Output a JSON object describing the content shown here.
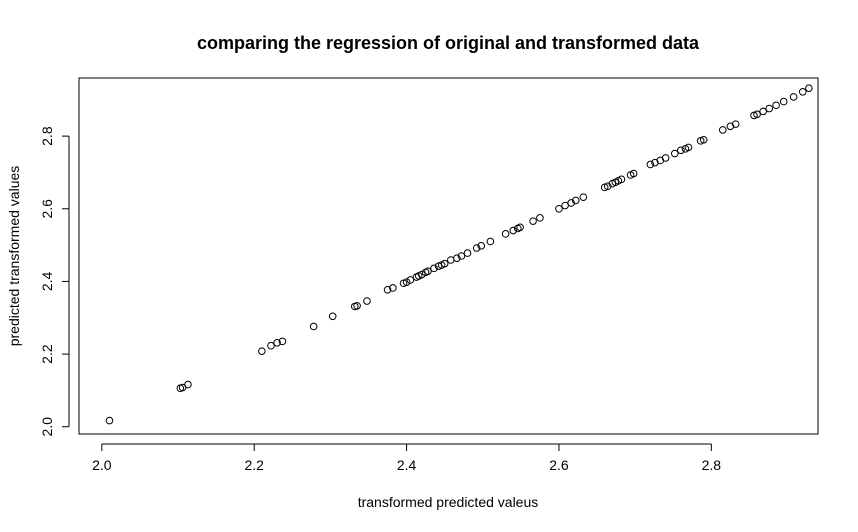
{
  "chart_data": {
    "type": "scatter",
    "title": "comparing the regression of original and transformed data",
    "xlabel": "transformed predicted valeus",
    "ylabel": "predicted transformed values",
    "xlim": [
      1.97,
      2.94
    ],
    "ylim": [
      1.98,
      2.96
    ],
    "xticks": [
      2.0,
      2.2,
      2.4,
      2.6,
      2.8
    ],
    "yticks": [
      2.0,
      2.2,
      2.4,
      2.6,
      2.8
    ],
    "xtick_labels": [
      "2.0",
      "2.2",
      "2.4",
      "2.6",
      "2.8"
    ],
    "ytick_labels": [
      "2.0",
      "2.2",
      "2.4",
      "2.6",
      "2.8"
    ],
    "marker": "open-circle",
    "marker_color": "#000000",
    "grid": false,
    "legend": "none",
    "points": [
      [
        2.01,
        2.017
      ],
      [
        2.103,
        2.106
      ],
      [
        2.106,
        2.108
      ],
      [
        2.113,
        2.116
      ],
      [
        2.21,
        2.208
      ],
      [
        2.222,
        2.223
      ],
      [
        2.23,
        2.231
      ],
      [
        2.237,
        2.235
      ],
      [
        2.278,
        2.276
      ],
      [
        2.303,
        2.304
      ],
      [
        2.332,
        2.331
      ],
      [
        2.335,
        2.333
      ],
      [
        2.348,
        2.346
      ],
      [
        2.375,
        2.377
      ],
      [
        2.382,
        2.382
      ],
      [
        2.396,
        2.395
      ],
      [
        2.4,
        2.398
      ],
      [
        2.405,
        2.404
      ],
      [
        2.413,
        2.412
      ],
      [
        2.416,
        2.415
      ],
      [
        2.42,
        2.419
      ],
      [
        2.425,
        2.425
      ],
      [
        2.428,
        2.428
      ],
      [
        2.436,
        2.436
      ],
      [
        2.442,
        2.442
      ],
      [
        2.446,
        2.445
      ],
      [
        2.45,
        2.449
      ],
      [
        2.458,
        2.459
      ],
      [
        2.466,
        2.464
      ],
      [
        2.472,
        2.47
      ],
      [
        2.48,
        2.478
      ],
      [
        2.492,
        2.492
      ],
      [
        2.498,
        2.498
      ],
      [
        2.51,
        2.51
      ],
      [
        2.53,
        2.531
      ],
      [
        2.54,
        2.54
      ],
      [
        2.546,
        2.546
      ],
      [
        2.549,
        2.549
      ],
      [
        2.566,
        2.566
      ],
      [
        2.575,
        2.575
      ],
      [
        2.6,
        2.6
      ],
      [
        2.608,
        2.609
      ],
      [
        2.616,
        2.616
      ],
      [
        2.622,
        2.623
      ],
      [
        2.632,
        2.632
      ],
      [
        2.66,
        2.659
      ],
      [
        2.664,
        2.662
      ],
      [
        2.67,
        2.669
      ],
      [
        2.674,
        2.673
      ],
      [
        2.678,
        2.677
      ],
      [
        2.682,
        2.681
      ],
      [
        2.694,
        2.693
      ],
      [
        2.698,
        2.697
      ],
      [
        2.72,
        2.722
      ],
      [
        2.726,
        2.727
      ],
      [
        2.733,
        2.733
      ],
      [
        2.74,
        2.74
      ],
      [
        2.752,
        2.752
      ],
      [
        2.76,
        2.761
      ],
      [
        2.766,
        2.765
      ],
      [
        2.77,
        2.769
      ],
      [
        2.786,
        2.787
      ],
      [
        2.79,
        2.79
      ],
      [
        2.815,
        2.817
      ],
      [
        2.825,
        2.827
      ],
      [
        2.832,
        2.833
      ],
      [
        2.856,
        2.857
      ],
      [
        2.86,
        2.86
      ],
      [
        2.868,
        2.868
      ],
      [
        2.876,
        2.876
      ],
      [
        2.885,
        2.885
      ],
      [
        2.895,
        2.895
      ],
      [
        2.908,
        2.908
      ],
      [
        2.92,
        2.922
      ],
      [
        2.928,
        2.932
      ]
    ]
  }
}
